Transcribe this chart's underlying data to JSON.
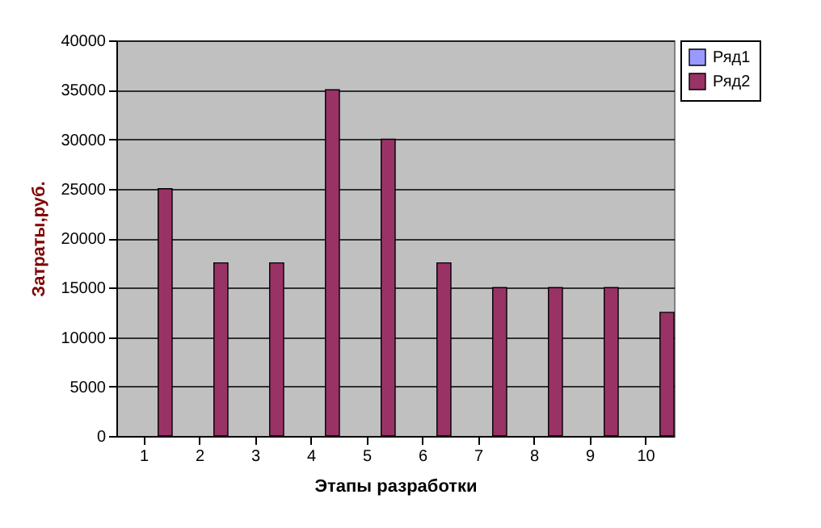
{
  "chart_data": {
    "type": "bar",
    "xlabel": "Этапы разработки",
    "ylabel": "Затраты,руб.",
    "categories": [
      "1",
      "2",
      "3",
      "4",
      "5",
      "6",
      "7",
      "8",
      "9",
      "10"
    ],
    "series": [
      {
        "name": "Ряд1",
        "color": "#9999ff",
        "values": [
          null,
          null,
          null,
          null,
          null,
          null,
          null,
          null,
          null,
          null
        ]
      },
      {
        "name": "Ряд2",
        "color": "#993366",
        "values": [
          25000,
          17500,
          17500,
          35000,
          30000,
          17500,
          15000,
          15000,
          15000,
          12500
        ]
      }
    ],
    "ylim": [
      0,
      40000
    ],
    "yticks": [
      0,
      5000,
      10000,
      15000,
      20000,
      25000,
      30000,
      35000,
      40000
    ],
    "grid": "y",
    "legend": "right"
  }
}
